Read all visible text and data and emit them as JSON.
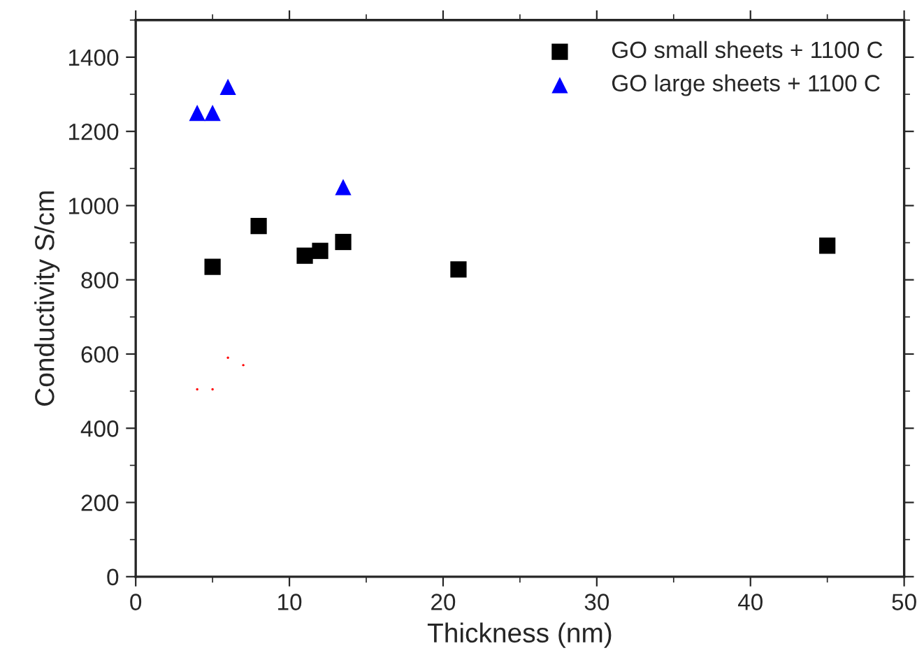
{
  "chart_data": {
    "type": "scatter",
    "xlabel": "Thickness (nm)",
    "ylabel": "Conductivity S/cm",
    "xlim": [
      0,
      50
    ],
    "xticks": [
      0,
      10,
      20,
      30,
      40,
      50
    ],
    "ylim": [
      0,
      1500
    ],
    "yticks": [
      0,
      200,
      400,
      600,
      800,
      1000,
      1200,
      1400
    ],
    "grid": false,
    "legend": "top right",
    "series": [
      {
        "name": "GO small sheets + 1100 C",
        "color": "#000000",
        "marker": "square",
        "x": [
          5,
          8,
          11,
          12,
          13.5,
          21,
          45
        ],
        "values": [
          835,
          945,
          865,
          878,
          902,
          828,
          892
        ]
      },
      {
        "name": "GO large sheets + 1100 C",
        "color": "#0000ff",
        "marker": "triangle",
        "x": [
          4,
          5,
          6,
          13.5
        ],
        "values": [
          1250,
          1250,
          1320,
          1050
        ]
      },
      {
        "color": "#ff0000",
        "marker": "circle",
        "x": [
          4,
          5,
          6,
          7
        ],
        "values": [
          505,
          505,
          590,
          570
        ]
      }
    ]
  }
}
